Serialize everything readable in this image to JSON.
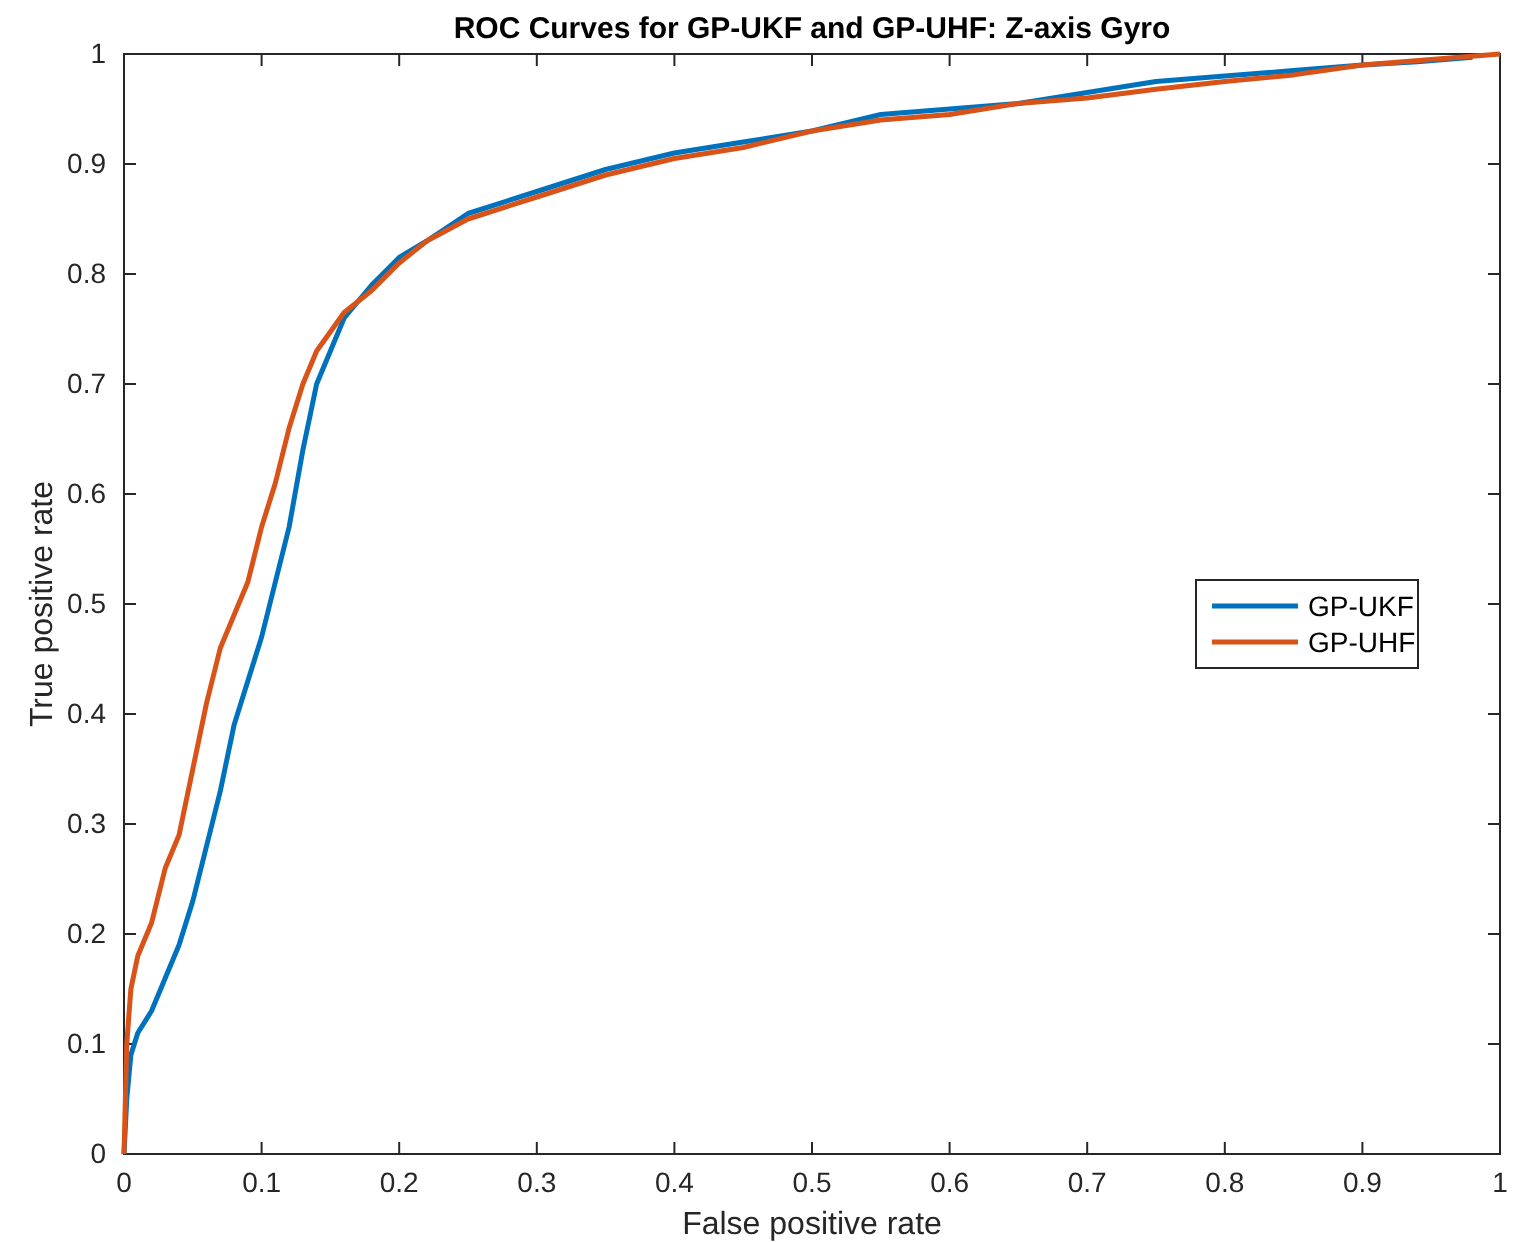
{
  "chart_data": {
    "type": "line",
    "title": "ROC Curves for GP-UKF and GP-UHF:  Z-axis Gyro",
    "xlabel": "False positive rate",
    "ylabel": "True positive rate",
    "xlim": [
      0,
      1
    ],
    "ylim": [
      0,
      1
    ],
    "xticks": [
      0,
      0.1,
      0.2,
      0.3,
      0.4,
      0.5,
      0.6,
      0.7,
      0.8,
      0.9,
      1
    ],
    "yticks": [
      0,
      0.1,
      0.2,
      0.3,
      0.4,
      0.5,
      0.6,
      0.7,
      0.8,
      0.9,
      1
    ],
    "grid": false,
    "legend": "right",
    "marker": "none",
    "line_style": "solid",
    "series": [
      {
        "name": "GP-UKF",
        "color": "#0072bd",
        "x": [
          0,
          0.002,
          0.005,
          0.01,
          0.02,
          0.03,
          0.04,
          0.05,
          0.06,
          0.07,
          0.08,
          0.09,
          0.1,
          0.11,
          0.12,
          0.13,
          0.14,
          0.15,
          0.16,
          0.18,
          0.2,
          0.22,
          0.25,
          0.3,
          0.35,
          0.4,
          0.45,
          0.5,
          0.55,
          0.6,
          0.65,
          0.7,
          0.75,
          0.8,
          0.85,
          0.9,
          0.94,
          0.98
        ],
        "values": [
          0,
          0.05,
          0.09,
          0.11,
          0.13,
          0.16,
          0.19,
          0.23,
          0.28,
          0.33,
          0.39,
          0.43,
          0.47,
          0.52,
          0.57,
          0.64,
          0.7,
          0.73,
          0.76,
          0.79,
          0.815,
          0.83,
          0.855,
          0.875,
          0.895,
          0.91,
          0.92,
          0.93,
          0.945,
          0.95,
          0.955,
          0.965,
          0.975,
          0.98,
          0.985,
          0.99,
          0.993,
          0.997
        ]
      },
      {
        "name": "GP-UHF",
        "color": "#d95319",
        "x": [
          0,
          0.002,
          0.005,
          0.01,
          0.02,
          0.03,
          0.04,
          0.05,
          0.06,
          0.07,
          0.08,
          0.09,
          0.1,
          0.11,
          0.12,
          0.13,
          0.14,
          0.16,
          0.18,
          0.2,
          0.22,
          0.25,
          0.3,
          0.35,
          0.4,
          0.45,
          0.5,
          0.55,
          0.6,
          0.65,
          0.7,
          0.75,
          0.8,
          0.85,
          0.9,
          0.95,
          1
        ],
        "values": [
          0,
          0.1,
          0.15,
          0.18,
          0.21,
          0.26,
          0.29,
          0.35,
          0.41,
          0.46,
          0.49,
          0.52,
          0.57,
          0.61,
          0.66,
          0.7,
          0.73,
          0.765,
          0.785,
          0.81,
          0.83,
          0.85,
          0.87,
          0.89,
          0.905,
          0.915,
          0.93,
          0.94,
          0.945,
          0.955,
          0.96,
          0.968,
          0.975,
          0.981,
          0.99,
          0.995,
          1
        ]
      }
    ]
  }
}
